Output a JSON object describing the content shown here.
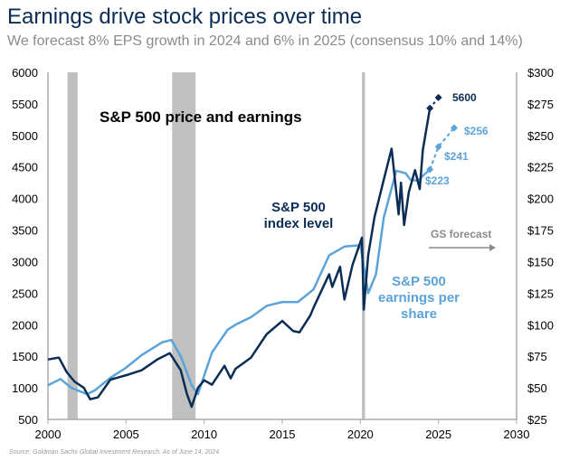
{
  "title": "Earnings drive stock prices over time",
  "subtitle": "We forecast 8% EPS growth in 2024 and 6% in 2025 (consensus 10% and 14%)",
  "source": "Source: Goldman Sachs Global Investment Research. As of June 14, 2024.",
  "chart_data": {
    "type": "line",
    "title": "S&P 500 price and earnings",
    "xlim": [
      2000,
      2030
    ],
    "x_ticks": [
      "2000",
      "2005",
      "2010",
      "2015",
      "2020",
      "2025",
      "2030"
    ],
    "ylim_left": [
      500,
      6000
    ],
    "y_ticks_left": [
      "500",
      "1000",
      "1500",
      "2000",
      "2500",
      "3000",
      "3500",
      "4000",
      "4500",
      "5000",
      "5500",
      "6000"
    ],
    "ylim_right": [
      25,
      300
    ],
    "y_ticks_right": [
      "$25",
      "$50",
      "$75",
      "$100",
      "$125",
      "$150",
      "$175",
      "$200",
      "$225",
      "$250",
      "$275",
      "$300"
    ],
    "recessions": [
      [
        2001.25,
        2001.9
      ],
      [
        2007.95,
        2009.45
      ],
      [
        2020.1,
        2020.3
      ]
    ],
    "colors": {
      "index": "#0b2d55",
      "eps": "#5ba3d9",
      "recession": "#c0c0c0",
      "forecast": "#8a8a8a"
    },
    "series": [
      {
        "name": "S&P 500 index level",
        "axis": "left",
        "x": [
          2000,
          2000.7,
          2001.2,
          2001.7,
          2002.3,
          2002.7,
          2003.2,
          2004,
          2005,
          2006,
          2007,
          2007.8,
          2008.5,
          2008.9,
          2009.2,
          2009.6,
          2010,
          2010.5,
          2011.3,
          2011.7,
          2012,
          2013,
          2014,
          2015,
          2015.7,
          2016.1,
          2016.8,
          2017,
          2018,
          2018.2,
          2018.7,
          2018.98,
          2019.5,
          2020.1,
          2020.22,
          2020.5,
          2020.9,
          2021.5,
          2022.0,
          2022.45,
          2022.6,
          2022.8,
          2023.1,
          2023.5,
          2023.8,
          2024.0,
          2024.45
        ],
        "y": [
          1450,
          1480,
          1250,
          1100,
          1000,
          820,
          850,
          1130,
          1200,
          1280,
          1450,
          1550,
          1280,
          900,
          700,
          1000,
          1120,
          1050,
          1350,
          1150,
          1300,
          1480,
          1850,
          2060,
          1900,
          1880,
          2150,
          2270,
          2800,
          2600,
          2920,
          2400,
          2950,
          3380,
          2240,
          3100,
          3700,
          4300,
          4790,
          3750,
          4250,
          3580,
          4100,
          4450,
          4150,
          4770,
          5430
        ]
      },
      {
        "name": "S&P 500 earnings per share",
        "axis": "right",
        "x": [
          2000,
          2000.8,
          2001.5,
          2002.5,
          2003,
          2004,
          2005,
          2006,
          2007.3,
          2007.9,
          2008.5,
          2009.2,
          2009.6,
          2010.5,
          2011.5,
          2012,
          2013,
          2014,
          2015,
          2016,
          2017,
          2018,
          2019,
          2020.0,
          2020.5,
          2021,
          2021.5,
          2022.3,
          2022.9,
          2023.2,
          2023.7,
          2024.0,
          2024.45
        ],
        "y": [
          52,
          57,
          50,
          45,
          48,
          58,
          66,
          76,
          86,
          88,
          75,
          52,
          45,
          78,
          96,
          100,
          106,
          115,
          118,
          118,
          128,
          155,
          162,
          163,
          125,
          140,
          185,
          222,
          220,
          215,
          214,
          218,
          223
        ]
      }
    ],
    "forecasts": [
      {
        "series": "S&P 500 index level",
        "x": [
          2024.45,
          2025
        ],
        "y": [
          5430,
          5600
        ],
        "label": "5600"
      },
      {
        "series": "S&P 500 earnings per share",
        "x": [
          2024.45,
          2025,
          2026
        ],
        "y": [
          223,
          241,
          256
        ],
        "labels": [
          "$223",
          "$241",
          "$256"
        ]
      }
    ],
    "annotations": {
      "index_label": [
        "S&P 500",
        "index level"
      ],
      "eps_label": [
        "S&P 500",
        "earnings per",
        "share"
      ],
      "forecast_label": "GS forecast"
    }
  }
}
